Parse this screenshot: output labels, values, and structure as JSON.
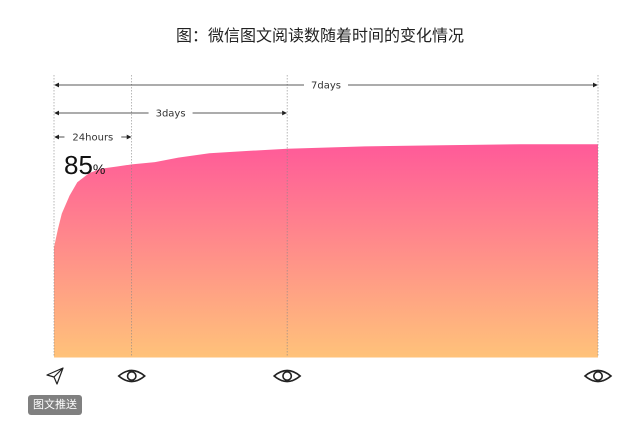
{
  "title": "图：微信图文阅读数随着时间的变化情况",
  "chart_data": {
    "type": "area",
    "title": "图：微信图文阅读数随着时间的变化情况",
    "x_unit": "days",
    "x": [
      0,
      0.05,
      0.1,
      0.2,
      0.3,
      0.45,
      0.6,
      0.8,
      1,
      1.3,
      1.6,
      2,
      2.5,
      3,
      4,
      5,
      6,
      7
    ],
    "y": [
      49,
      57,
      64,
      72,
      78,
      82,
      84,
      85,
      86,
      87,
      89,
      91,
      92,
      93,
      94,
      94.5,
      95,
      95
    ],
    "xlim": [
      0,
      7
    ],
    "ylim": [
      0,
      100
    ],
    "annotations": [
      {
        "label": "24hours",
        "from": 0,
        "to": 1
      },
      {
        "label": "3days",
        "from": 0,
        "to": 3
      },
      {
        "label": "7days",
        "from": 0,
        "to": 7
      }
    ],
    "value_label": {
      "number": "85",
      "unit": "%"
    },
    "gradient": {
      "top": "#ff5a99",
      "bottom": "#ffc27a"
    }
  },
  "badge": "图文推送",
  "icons": [
    "send-icon",
    "eye-icon",
    "eye-icon",
    "eye-icon"
  ]
}
